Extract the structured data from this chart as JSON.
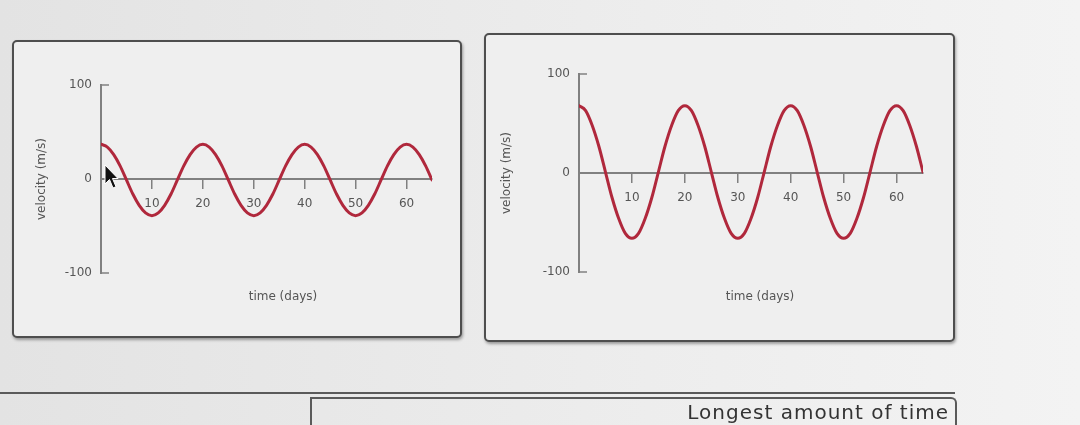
{
  "chart_data": [
    {
      "type": "line",
      "xlabel": "time (days)",
      "ylabel": "velocity (m/s)",
      "x": [
        0,
        1.25,
        2.5,
        3.75,
        5,
        6.25,
        7.5,
        8.75,
        10,
        11.25,
        12.5,
        13.75,
        15,
        16.25,
        17.5,
        18.75,
        20,
        21.25,
        22.5,
        23.75,
        25,
        26.25,
        27.5,
        28.75,
        30,
        31.25,
        32.5,
        33.75,
        35,
        36.25,
        37.5,
        38.75,
        40,
        41.25,
        42.5,
        43.75,
        45,
        46.25,
        47.5,
        48.75,
        50,
        51.25,
        52.5,
        53.75,
        55,
        56.25,
        57.5,
        58.75,
        60,
        61.25,
        62.5,
        63.75,
        65
      ],
      "series": [
        {
          "color": "#b0283c",
          "values": [
            37,
            34,
            26,
            14,
            -1,
            -16,
            -28,
            -36,
            -39,
            -36,
            -28,
            -16,
            -1,
            14,
            26,
            34,
            37,
            34,
            26,
            14,
            -1,
            -16,
            -28,
            -36,
            -39,
            -36,
            -28,
            -16,
            -1,
            14,
            26,
            34,
            37,
            34,
            26,
            14,
            -1,
            -16,
            -28,
            -36,
            -39,
            -36,
            -28,
            -16,
            -1,
            14,
            26,
            34,
            37,
            34,
            26,
            14,
            -1
          ]
        }
      ],
      "xlim": [
        0,
        65
      ],
      "ylim": [
        -100,
        100
      ],
      "xticks": [
        10,
        20,
        30,
        40,
        50,
        60
      ],
      "yticks": [
        -100,
        0,
        100
      ]
    },
    {
      "type": "line",
      "xlabel": "time (days)",
      "ylabel": "velocity (m/s)",
      "x": [
        0,
        1.25,
        2.5,
        3.75,
        5,
        6.25,
        7.5,
        8.75,
        10,
        11.25,
        12.5,
        13.75,
        15,
        16.25,
        17.5,
        18.75,
        20,
        21.25,
        22.5,
        23.75,
        25,
        26.25,
        27.5,
        28.75,
        30,
        31.25,
        32.5,
        33.75,
        35,
        36.25,
        37.5,
        38.75,
        40,
        41.25,
        42.5,
        43.75,
        45,
        46.25,
        47.5,
        48.75,
        50,
        51.25,
        52.5,
        53.75,
        55,
        56.25,
        57.5,
        58.75,
        60,
        61.25,
        62.5,
        63.75,
        65
      ],
      "series": [
        {
          "color": "#b0283c",
          "values": [
            68,
            63,
            48,
            27,
            1,
            -25,
            -46,
            -61,
            -66,
            -61,
            -46,
            -25,
            1,
            27,
            48,
            63,
            68,
            63,
            48,
            27,
            1,
            -25,
            -46,
            -61,
            -66,
            -61,
            -46,
            -25,
            1,
            27,
            48,
            63,
            68,
            63,
            48,
            27,
            1,
            -25,
            -46,
            -61,
            -66,
            -61,
            -46,
            -25,
            1,
            27,
            48,
            63,
            68,
            63,
            48,
            27,
            1
          ]
        }
      ],
      "xlim": [
        0,
        65
      ],
      "ylim": [
        -100,
        100
      ],
      "xticks": [
        10,
        20,
        30,
        40,
        50,
        60
      ],
      "yticks": [
        -100,
        0,
        100
      ]
    },
    {
      "type": "other",
      "title": "Longest amount of time"
    }
  ]
}
